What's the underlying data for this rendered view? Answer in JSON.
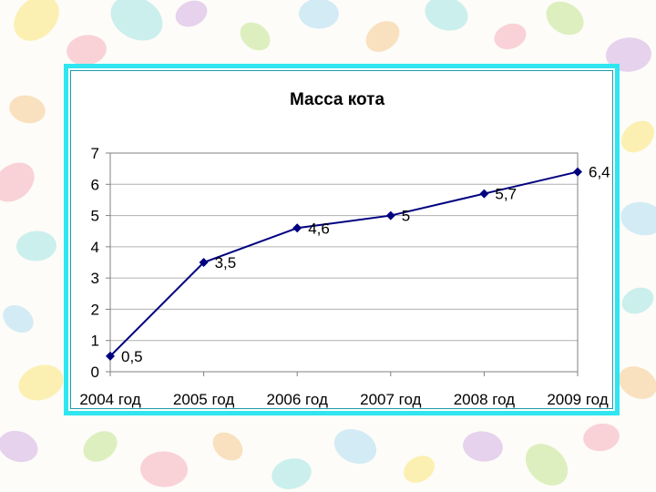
{
  "colors": {
    "frame": "#2fe6f0",
    "series": "#000080",
    "grid": "#b0b0b0",
    "background_blobs": [
      "#f9e25a",
      "#f5a0b0",
      "#8fe0e0",
      "#c9a0e0",
      "#f5c27a",
      "#9fd8f0",
      "#b6e07a"
    ]
  },
  "chart_data": {
    "type": "line",
    "title": "Масса кота",
    "xlabel": "",
    "ylabel": "",
    "categories": [
      "2004 год",
      "2005 год",
      "2006 год",
      "2007 год",
      "2008 год",
      "2009 год"
    ],
    "series": [
      {
        "values": [
          0.5,
          3.5,
          4.6,
          5,
          5.7,
          6.4
        ]
      }
    ],
    "data_labels": [
      "0,5",
      "3,5",
      "4,6",
      "5",
      "5,7",
      "6,4"
    ],
    "yticks": [
      "0",
      "1",
      "2",
      "3",
      "4",
      "5",
      "6",
      "7"
    ],
    "ylim": [
      0,
      7
    ],
    "grid": true,
    "legend": "none",
    "marker": "diamond"
  }
}
